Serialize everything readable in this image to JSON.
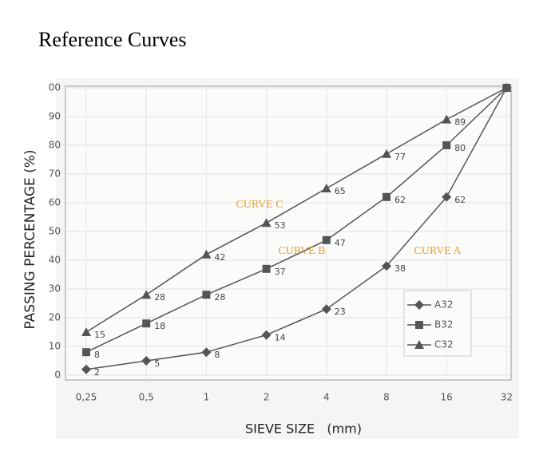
{
  "chart_data": {
    "type": "line",
    "title": "Reference Curves",
    "y_label": "PASSING PERCENTAGE (%)",
    "x_label": "SIEVE SIZE   (mm)",
    "categories": [
      "0,25",
      "0,5",
      "1",
      "2",
      "4",
      "8",
      "16",
      "32"
    ],
    "ylim": [
      0,
      100
    ],
    "yticks": [
      0,
      10,
      20,
      30,
      40,
      50,
      60,
      70,
      80,
      90,
      {
        "value": 100,
        "label": "00"
      }
    ],
    "grid": true,
    "legend": "lower right",
    "annotations": [
      "CURVE C",
      "CURVE B",
      "CURVE A"
    ],
    "annotation_color": "#e0a030",
    "series": [
      {
        "name": "A32",
        "color": "#555555",
        "marker": "diamond",
        "values": [
          2,
          5,
          8,
          14,
          23,
          38,
          62,
          100
        ],
        "value_labels": [
          "2",
          "5",
          "8",
          "14",
          "23",
          "38",
          "62",
          null
        ]
      },
      {
        "name": "B32",
        "color": "#555555",
        "marker": "square",
        "values": [
          8,
          18,
          28,
          37,
          47,
          62,
          80,
          100
        ],
        "value_labels": [
          "8",
          "18",
          "28",
          "37",
          "47",
          "62",
          "80",
          null
        ]
      },
      {
        "name": "C32",
        "color": "#555555",
        "marker": "triangle",
        "values": [
          15,
          28,
          42,
          53,
          65,
          77,
          89,
          100
        ],
        "value_labels": [
          "15",
          "28",
          "42",
          "53",
          "65",
          "77",
          "89",
          null
        ]
      }
    ]
  }
}
